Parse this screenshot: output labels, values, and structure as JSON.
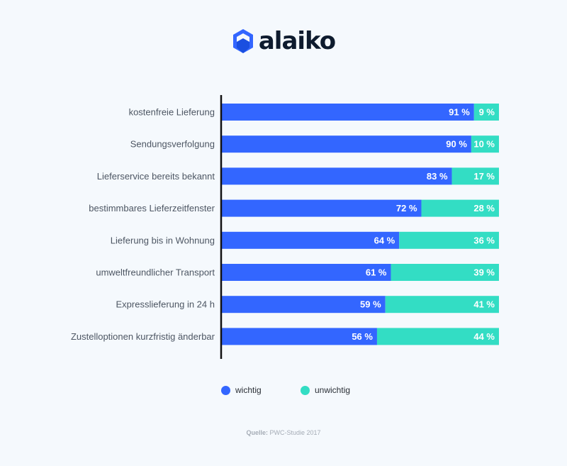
{
  "brand": {
    "name": "alaiko"
  },
  "colors": {
    "wichtig": "#3366ff",
    "unwichtig": "#33ddc4",
    "axis": "#111111"
  },
  "chart_data": {
    "type": "bar",
    "orientation": "horizontal",
    "stacked": true,
    "categories": [
      "kostenfreie Lieferung",
      "Sendungsverfolgung",
      "Lieferservice bereits bekannt",
      "bestimmbares Lieferzeitfenster",
      "Lieferung bis in Wohnung",
      "umweltfreundlicher Transport",
      "Expresslieferung in 24 h",
      "Zustelloptionen kurzfristig änderbar"
    ],
    "series": [
      {
        "name": "wichtig",
        "values": [
          91,
          90,
          83,
          72,
          64,
          61,
          59,
          56
        ]
      },
      {
        "name": "unwichtig",
        "values": [
          9,
          10,
          17,
          28,
          36,
          39,
          41,
          44
        ]
      }
    ],
    "value_suffix": " %",
    "xlim": [
      0,
      100
    ],
    "grid": false,
    "legend_position": "bottom"
  },
  "legend": {
    "wichtig": "wichtig",
    "unwichtig": "unwichtig"
  },
  "source": {
    "label": "Quelle:",
    "text": "PWC-Studie 2017"
  }
}
